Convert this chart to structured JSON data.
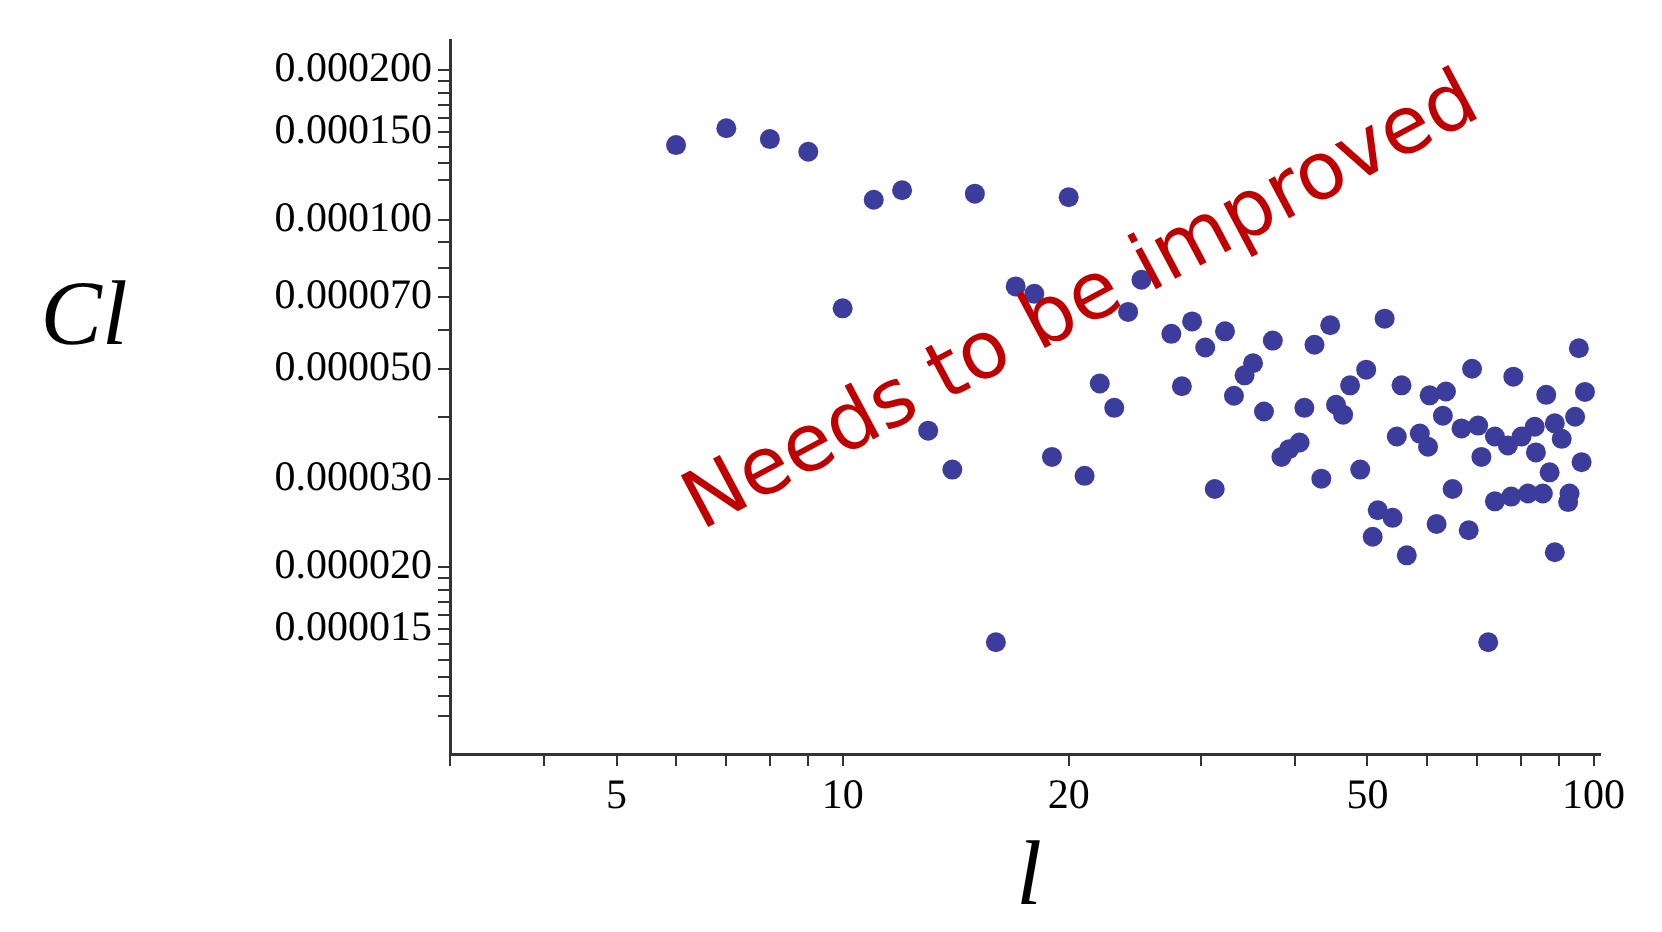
{
  "chart_data": {
    "type": "scatter",
    "xlabel": "l",
    "ylabel": "Cl",
    "annotations": [
      "Needs to be improved"
    ],
    "log": "xy",
    "marker": "circle",
    "color": "#3c3c9c",
    "xlim": [
      3,
      102
    ],
    "ylim": [
      8.4e-06,
      0.00023
    ],
    "xticks": [
      {
        "value": 3,
        "label": null
      },
      {
        "value": 4,
        "label": null
      },
      5,
      {
        "value": 6,
        "label": null
      },
      {
        "value": 7,
        "label": null
      },
      {
        "value": 8,
        "label": null
      },
      {
        "value": 9,
        "label": null
      },
      10,
      20,
      {
        "value": 30,
        "label": null
      },
      {
        "value": 40,
        "label": null
      },
      50,
      {
        "value": 60,
        "label": null
      },
      {
        "value": 70,
        "label": null
      },
      {
        "value": 80,
        "label": null
      },
      {
        "value": 90,
        "label": null
      },
      100
    ],
    "yticks": [
      {
        "value": 1e-05,
        "label": null
      },
      {
        "value": 1.1e-05,
        "label": null
      },
      {
        "value": 1.2e-05,
        "label": null
      },
      {
        "value": 1.3e-05,
        "label": null
      },
      {
        "value": 1.4e-05,
        "label": null
      },
      {
        "value": 1.5e-05,
        "label": "0.000015"
      },
      {
        "value": 1.6e-05,
        "label": null
      },
      {
        "value": 1.7e-05,
        "label": null
      },
      {
        "value": 1.8e-05,
        "label": null
      },
      {
        "value": 1.9e-05,
        "label": null
      },
      {
        "value": 2e-05,
        "label": "0.000020"
      },
      {
        "value": 3e-05,
        "label": "0.000030"
      },
      {
        "value": 4e-05,
        "label": null
      },
      {
        "value": 5e-05,
        "label": "0.000050"
      },
      {
        "value": 6e-05,
        "label": null
      },
      {
        "value": 7e-05,
        "label": "0.000070"
      },
      {
        "value": 8e-05,
        "label": null
      },
      {
        "value": 9e-05,
        "label": null
      },
      {
        "value": 0.0001,
        "label": "0.000100"
      },
      {
        "value": 0.00012,
        "label": null
      },
      {
        "value": 0.00013,
        "label": null
      },
      {
        "value": 0.00014,
        "label": null
      },
      {
        "value": 0.00015,
        "label": "0.000150"
      },
      {
        "value": 0.00016,
        "label": null
      },
      {
        "value": 0.00017,
        "label": null
      },
      {
        "value": 0.00018,
        "label": null
      },
      {
        "value": 0.00019,
        "label": null
      },
      {
        "value": 0.0002,
        "label": "0.000200"
      }
    ],
    "x": [
      6,
      7,
      8,
      9,
      10,
      11,
      12,
      13,
      14,
      15,
      16,
      17,
      18,
      19,
      20,
      21,
      22,
      23,
      24,
      25,
      27.4,
      28.3,
      29.2,
      30.4,
      31.3,
      32.3,
      33.2,
      34.3,
      35.2,
      36.4,
      37.4,
      38.4,
      39.3,
      40.6,
      41.2,
      42.5,
      43.4,
      44.6,
      45.4,
      46.4,
      47.4,
      48.9,
      49.8,
      50.8,
      51.6,
      52.7,
      54.0,
      54.7,
      55.5,
      56.4,
      58.7,
      60.2,
      60.5,
      61.8,
      63.0,
      63.6,
      64.9,
      66.7,
      68.2,
      68.9,
      70.2,
      70.9,
      72.4,
      73.9,
      73.9,
      76.9,
      77.7,
      78.2,
      80.2,
      81.8,
      83.5,
      83.8,
      85.6,
      86.5,
      87.4,
      88.8,
      88.8,
      90.7,
      92.5,
      92.9,
      94.5,
      95.6,
      96.4,
      97.4
    ],
    "values": [
      0.0001413,
      0.0001528,
      0.0001453,
      0.000137,
      6.63e-05,
      0.0001097,
      0.0001146,
      3.76e-05,
      3.14e-05,
      0.0001128,
      1.41e-05,
      7.34e-05,
      7.09e-05,
      3.33e-05,
      0.000111,
      3.05e-05,
      4.68e-05,
      4.18e-05,
      6.52e-05,
      7.57e-05,
      5.89e-05,
      4.62e-05,
      6.24e-05,
      5.53e-05,
      2.87e-05,
      5.96e-05,
      4.42e-05,
      4.86e-05,
      5.14e-05,
      4.11e-05,
      5.71e-05,
      3.33e-05,
      3.45e-05,
      3.56e-05,
      4.18e-05,
      5.6e-05,
      3.01e-05,
      6.13e-05,
      4.24e-05,
      4.05e-05,
      4.64e-05,
      3.14e-05,
      4.99e-05,
      2.3e-05,
      2.6e-05,
      6.32e-05,
      2.51e-05,
      3.66e-05,
      4.64e-05,
      2.11e-05,
      3.71e-05,
      3.49e-05,
      4.43e-05,
      2.44e-05,
      4.03e-05,
      4.51e-05,
      2.87e-05,
      3.8e-05,
      2.37e-05,
      5.01e-05,
      3.85e-05,
      3.33e-05,
      1.41e-05,
      3.66e-05,
      2.71e-05,
      3.51e-05,
      2.77e-05,
      4.83e-05,
      3.66e-05,
      2.81e-05,
      3.83e-05,
      3.4e-05,
      2.81e-05,
      4.44e-05,
      3.1e-05,
      3.89e-05,
      2.14e-05,
      3.62e-05,
      2.7e-05,
      2.81e-05,
      4.01e-05,
      5.51e-05,
      3.25e-05,
      4.5e-05
    ]
  }
}
